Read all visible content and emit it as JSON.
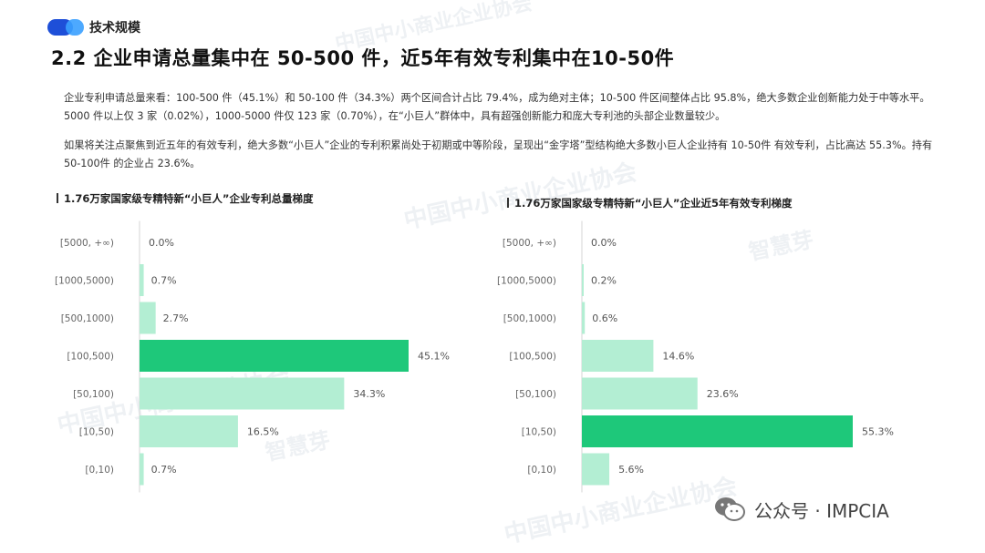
{
  "header": {
    "section_label": "技术规模",
    "title": "2.2 企业申请总量集中在 50-500 件，近5年有效专利集中在10-50件"
  },
  "paragraphs": [
    "企业专利申请总量来看：100-500 件（45.1%）和 50-100 件（34.3%）两个区间合计占比 79.4%，成为绝对主体；10-500 件区间整体占比 95.8%，绝大多数企业创新能力处于中等水平。5000 件以上仅 3 家（0.02%），1000-5000 件仅 123 家（0.70%），在“小巨人”群体中，具有超强创新能力和庞大专利池的头部企业数量较少。",
    "如果将关注点聚焦到近五年的有效专利，绝大多数“小巨人”企业的专利积累尚处于初期或中等阶段，呈现出“金字塔”型结构绝大多数小巨人企业持有 10-50件 有效专利，占比高达 55.3%。持有 50-100件 的企业占 23.6%。"
  ],
  "colors": {
    "highlight_bar": "#1ec87a",
    "normal_bar": "#b3eed3",
    "pill_dark": "#1e4fd8",
    "pill_light": "#3aa0ff"
  },
  "chart_data": [
    {
      "type": "bar",
      "orientation": "horizontal",
      "title": "1.76万家国家级专精特新“小巨人”企业专利总量梯度",
      "categories": [
        "[5000, +∞)",
        "[1000,5000)",
        "[500,1000)",
        "[100,500)",
        "[50,100)",
        "[10,50)",
        "[0,10)"
      ],
      "values": [
        0.0,
        0.7,
        2.7,
        45.1,
        34.3,
        16.5,
        0.7
      ],
      "labels": [
        "0.0%",
        "0.7%",
        "2.7%",
        "45.1%",
        "34.3%",
        "16.5%",
        "0.7%"
      ],
      "highlight_index": 3
    },
    {
      "type": "bar",
      "orientation": "horizontal",
      "title": "1.76万家国家级专精特新“小巨人”企业近5年有效专利梯度",
      "categories": [
        "[5000, +∞)",
        "[1000,5000)",
        "[500,1000)",
        "[100,500)",
        "[50,100)",
        "[10,50)",
        "[0,10)"
      ],
      "values": [
        0.0,
        0.2,
        0.6,
        14.6,
        23.6,
        55.3,
        5.6
      ],
      "labels": [
        "0.0%",
        "0.2%",
        "0.6%",
        "14.6%",
        "23.6%",
        "55.3%",
        "5.6%"
      ],
      "highlight_index": 5
    }
  ],
  "footer": {
    "text": "公众号 · IMPCIA",
    "icon": "wechat-icon"
  }
}
